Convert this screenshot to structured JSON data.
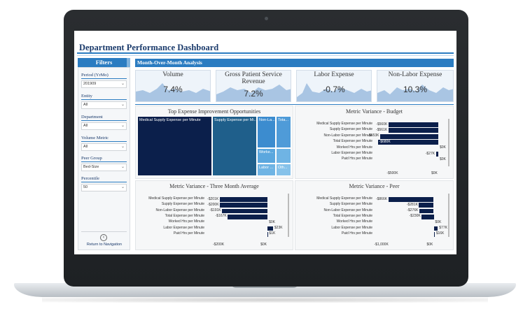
{
  "dashboard": {
    "title": "Department Performance Dashboard"
  },
  "filters": {
    "header": "Filters",
    "items": [
      {
        "label": "Period (YrMo)",
        "value": "201909"
      },
      {
        "label": "Entity",
        "value": "All"
      },
      {
        "label": "Department",
        "value": "All"
      },
      {
        "label": "Volume Metric",
        "value": "All"
      },
      {
        "label": "Peer Group",
        "value": "Bed-Size"
      },
      {
        "label": "Percentile",
        "value": "50"
      }
    ],
    "return_label": "Return to Navigation"
  },
  "mom": {
    "header": "Month-Over-Month Analysis",
    "kpis": [
      {
        "title": "Volume",
        "value": "7.4%"
      },
      {
        "title": "Gross Patient Service Revenue",
        "value": "7.2%"
      },
      {
        "title": "Labor Expense",
        "value": "-0.7%"
      },
      {
        "title": "Non-Labor Expense",
        "value": "10.3%"
      }
    ]
  },
  "treemap": {
    "title": "Top Expense Improvement Opportunities",
    "cells": [
      "Medical Supply Expense per Minute",
      "Supply Expense per Mi...",
      "Non-La...",
      "Tota...",
      "Worke...",
      "Labor ...",
      "Oth..."
    ]
  },
  "colors": {
    "accent": "#2b7cc1",
    "bar": "#0b1f4b",
    "title": "#1a3a6b"
  },
  "icons": {
    "return": "arrow-left-circle-icon",
    "dropdown": "chevron-down-icon"
  },
  "chart_data": [
    {
      "type": "bar",
      "title": "Metric Variance - Budget",
      "orientation": "horizontal",
      "categories": [
        "Medical Supply Expense per Minute",
        "Supply Expense per Minute",
        "Non-Labor Expense per Minute",
        "Total Expense per Minute",
        "Worked Hrs per Minute",
        "Labor Expense per Minute",
        "Paid Hrs per Minute"
      ],
      "values": [
        -560,
        -561,
        -653,
        -680,
        0,
        -27,
        0
      ],
      "value_labels": [
        "-$560K",
        "-$561K",
        "-$653K",
        "-$680K",
        "$0K",
        "-$27K",
        "$0K"
      ],
      "xlim": [
        -700,
        0
      ],
      "xticks": [
        "-$500K",
        "$0K"
      ],
      "xtick_values": [
        -500,
        0
      ]
    },
    {
      "type": "bar",
      "title": "Metric Variance - Three Month Average",
      "orientation": "horizontal",
      "categories": [
        "Medical Supply Expense per Minute",
        "Supply Expense per Minute",
        "Non-Labor Expense per Minute",
        "Total Expense per Minute",
        "Worked Hrs per Minute",
        "Labor Expense per Minute",
        "Paid Hrs per Minute"
      ],
      "values": [
        -201,
        -200,
        -191,
        -167,
        0,
        23,
        1
      ],
      "value_labels": [
        "-$201K",
        "-$200K",
        "-$191K",
        "-$167K",
        "$0K",
        "$23K",
        "$1K"
      ],
      "xlim": [
        -250,
        35
      ],
      "xticks": [
        "-$200K",
        "$0K"
      ],
      "xtick_values": [
        -200,
        0
      ]
    },
    {
      "type": "bar",
      "title": "Metric Variance - Peer",
      "orientation": "horizontal",
      "categories": [
        "Medical Supply Expense per Minute",
        "Supply Expense per Minute",
        "Non-Labor Expense per Minute",
        "Total Expense per Minute",
        "Worked Hrs per Minute",
        "Labor Expense per Minute",
        "Paid Hrs per Minute"
      ],
      "values": [
        -866,
        -281,
        -276,
        -230,
        0,
        77,
        16
      ],
      "value_labels": [
        "-$866K",
        "-$281K",
        "-$276K",
        "-$230K",
        "$0K",
        "$77K",
        "$16K"
      ],
      "xlim": [
        -1100,
        100
      ],
      "xticks": [
        "-$1,000K",
        "$0K"
      ],
      "xtick_values": [
        -1000,
        0
      ]
    }
  ]
}
